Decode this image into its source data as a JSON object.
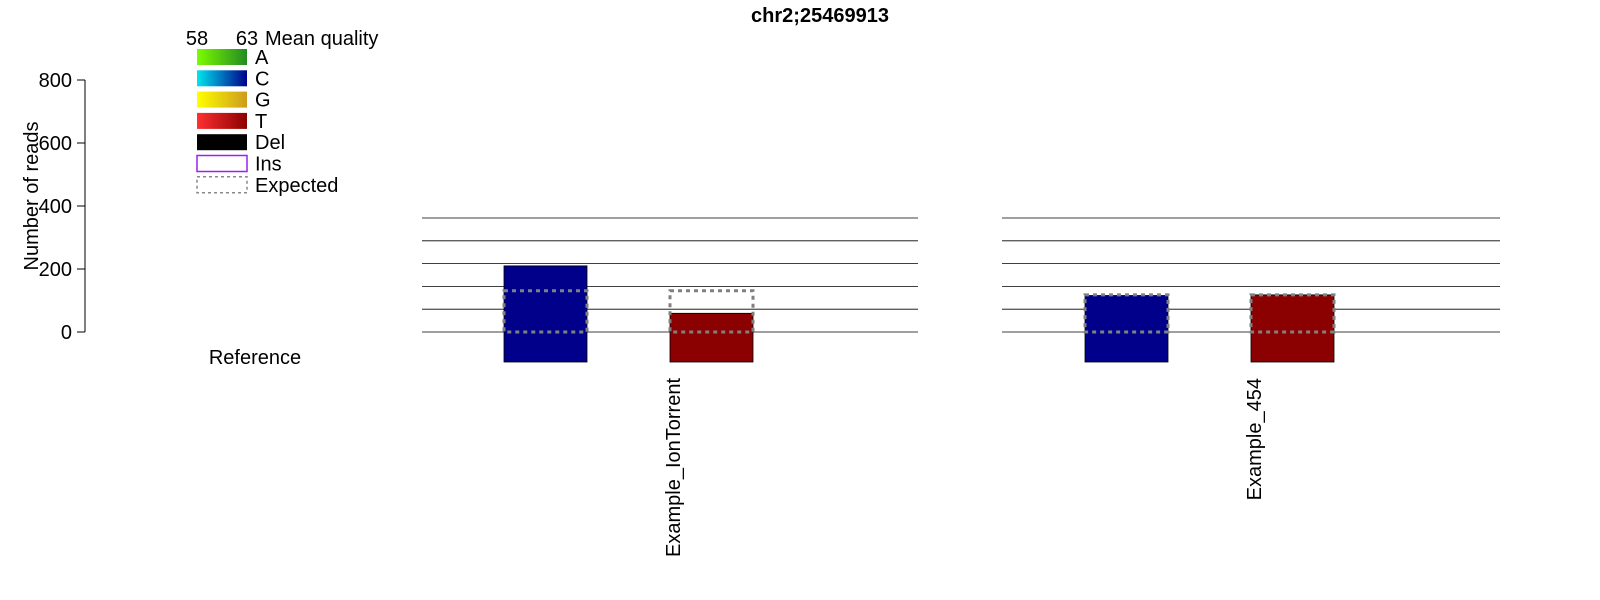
{
  "chart_data": {
    "type": "bar",
    "title": "chr2;25469913",
    "ylabel": "Number of reads",
    "ylim": [
      0,
      800
    ],
    "yticks": [
      0,
      200,
      400,
      600,
      800
    ],
    "reference_label": "Reference",
    "legend": {
      "placement": "top-left",
      "scale_min": "58",
      "scale_max": "63",
      "scale_title": "Mean quality",
      "entries": [
        {
          "label": "A",
          "style": "gradient",
          "colors": [
            "#7cfc00",
            "#228b22"
          ]
        },
        {
          "label": "C",
          "style": "gradient",
          "colors": [
            "#00e5ee",
            "#00008b"
          ]
        },
        {
          "label": "G",
          "style": "gradient",
          "colors": [
            "#ffff00",
            "#cd9b1d"
          ]
        },
        {
          "label": "T",
          "style": "gradient",
          "colors": [
            "#ff3030",
            "#8b0000"
          ]
        },
        {
          "label": "Del",
          "style": "solid",
          "colors": [
            "#000000"
          ]
        },
        {
          "label": "Ins",
          "style": "outline",
          "colors": [
            "#a020f0"
          ]
        },
        {
          "label": "Expected",
          "style": "dashed",
          "colors": [
            "#888888"
          ]
        }
      ]
    },
    "samples": [
      {
        "name": "Example_IonTorrent",
        "bars": [
          {
            "base": "C",
            "value": 290,
            "expected": 181,
            "color": "#00008b"
          },
          {
            "base": "T",
            "value": 82,
            "expected": 181,
            "color": "#8b0000"
          }
        ]
      },
      {
        "name": "Example_454",
        "bars": [
          {
            "base": "C",
            "value": 112,
            "expected": 114,
            "color": "#00008b"
          },
          {
            "base": "T",
            "value": 114,
            "expected": 114,
            "color": "#8b0000"
          }
        ]
      }
    ]
  }
}
